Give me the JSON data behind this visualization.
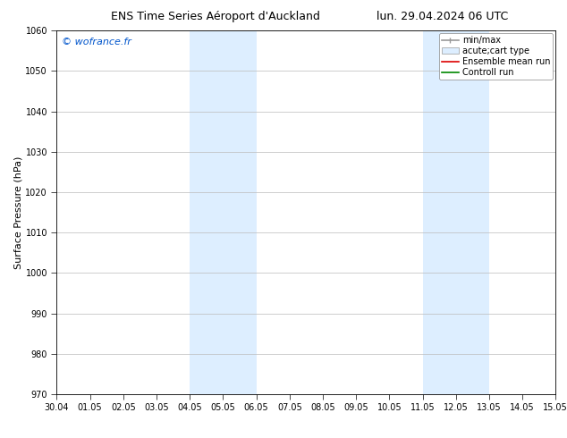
{
  "title_left": "ENS Time Series Aéroport d'Auckland",
  "title_right": "lun. 29.04.2024 06 UTC",
  "ylabel": "Surface Pressure (hPa)",
  "ylim": [
    970,
    1060
  ],
  "yticks": [
    970,
    980,
    990,
    1000,
    1010,
    1020,
    1030,
    1040,
    1050,
    1060
  ],
  "xtick_labels": [
    "30.04",
    "01.05",
    "02.05",
    "03.05",
    "04.05",
    "05.05",
    "06.05",
    "07.05",
    "08.05",
    "09.05",
    "10.05",
    "11.05",
    "12.05",
    "13.05",
    "14.05",
    "15.05"
  ],
  "shaded_regions": [
    {
      "start": 4,
      "end": 5,
      "color": "#ddeeff"
    },
    {
      "start": 5,
      "end": 6,
      "color": "#ddeeff"
    },
    {
      "start": 11,
      "end": 12,
      "color": "#ddeeff"
    },
    {
      "start": 12,
      "end": 13,
      "color": "#ddeeff"
    }
  ],
  "watermark": "© wofrance.fr",
  "watermark_color": "#0055cc",
  "legend_entries": [
    {
      "label": "min/max",
      "type": "errorbar",
      "color": "#aaaaaa"
    },
    {
      "label": "acute;cart type",
      "type": "bar",
      "color": "#ddeeff"
    },
    {
      "label": "Ensemble mean run",
      "type": "line",
      "color": "#dd0000"
    },
    {
      "label": "Controll run",
      "type": "line",
      "color": "#008800"
    }
  ],
  "background_color": "#ffffff",
  "plot_bg_color": "#ffffff",
  "grid_color": "#bbbbbb",
  "title_fontsize": 9,
  "tick_fontsize": 7,
  "ylabel_fontsize": 8,
  "watermark_fontsize": 8,
  "legend_fontsize": 7
}
